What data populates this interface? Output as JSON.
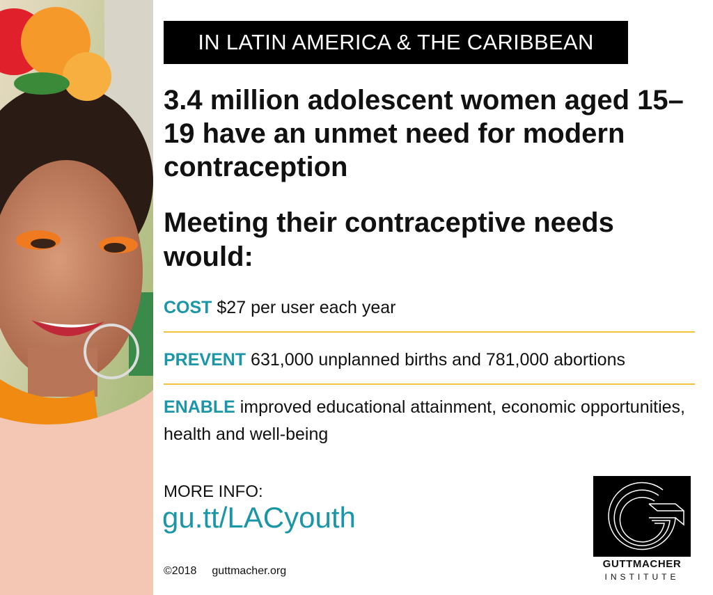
{
  "banner": "IN LATIN AMERICA & THE CARIBBEAN",
  "headline": "3.4 million adolescent women aged 15–19 have an unmet need for modern contraception",
  "subheadline": "Meeting their contraceptive needs would:",
  "items": [
    {
      "keyword": "COST",
      "text": "$27 per user each year"
    },
    {
      "keyword": "PREVENT",
      "text": "631,000 unplanned births and 781,000 abortions"
    },
    {
      "keyword": "ENABLE",
      "text": "improved educational attainment, economic opportunities, health and well-being"
    }
  ],
  "more_info": {
    "label": "MORE INFO:",
    "link": "gu.tt/LACyouth"
  },
  "footer": {
    "copyright": "©2018",
    "website": "guttmacher.org"
  },
  "logo": {
    "name": "GUTTMACHER",
    "subtitle": "INSTITUTE"
  }
}
